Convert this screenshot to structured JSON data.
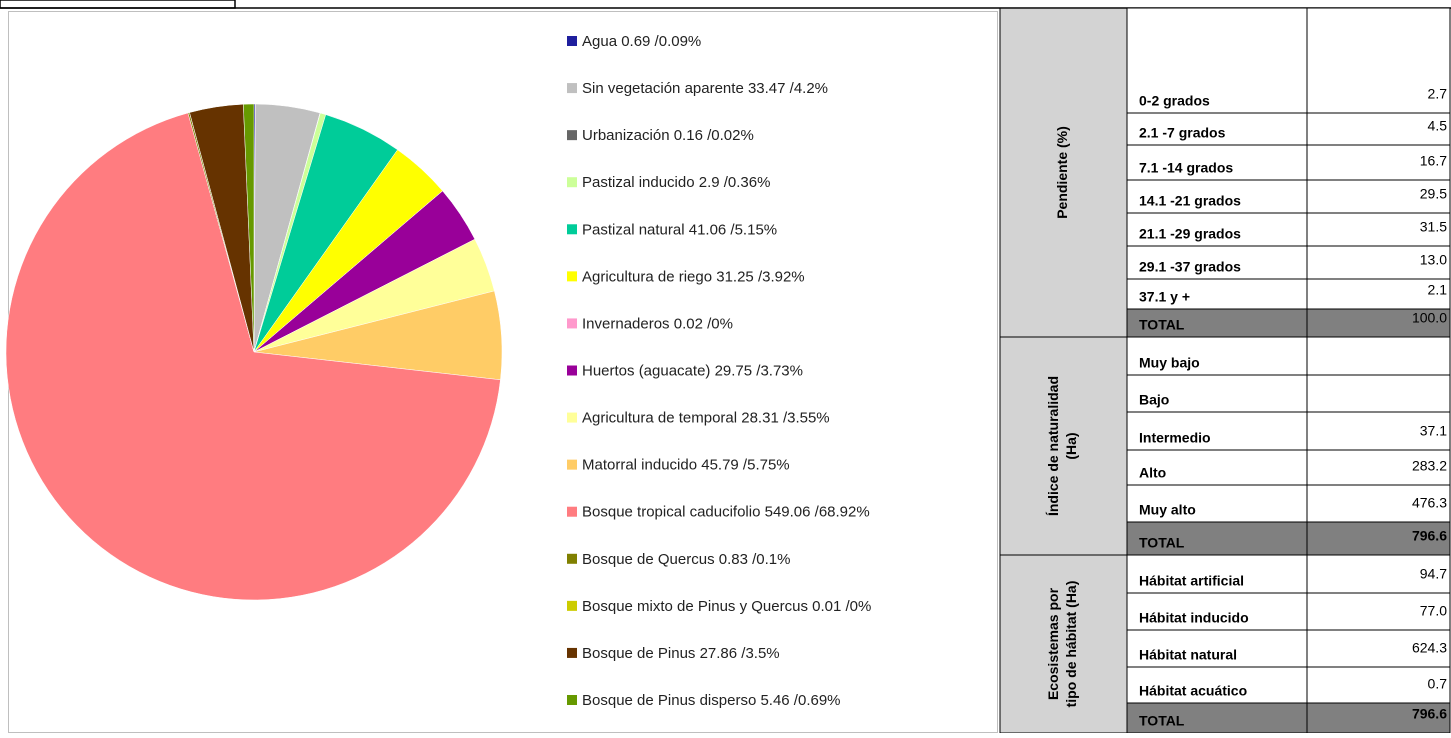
{
  "chart_data": {
    "type": "pie",
    "categories": [
      "Agua 0.69 /0.09%",
      "Sin vegetación aparente 33.47 /4.2%",
      "Urbanización 0.16 /0.02%",
      "Pastizal inducido 2.9 /0.36%",
      "Pastizal natural 41.06 /5.15%",
      "Agricultura de riego 31.25 /3.92%",
      "Invernaderos 0.02 /0%",
      "Huertos (aguacate) 29.75 /3.73%",
      "Agricultura de temporal 28.31 /3.55%",
      "Matorral inducido 45.79 /5.75%",
      "Bosque tropical caducifolio 549.06 /68.92%",
      "Bosque de Quercus 0.83 /0.1%",
      "Bosque mixto de Pinus y Quercus 0.01 /0%",
      "Bosque de Pinus 27.86 /3.5%",
      "Bosque de Pinus disperso 5.46 /0.69%"
    ],
    "values": [
      0.69,
      33.47,
      0.16,
      2.9,
      41.06,
      31.25,
      0.02,
      29.75,
      28.31,
      45.79,
      549.06,
      0.83,
      0.01,
      27.86,
      5.46
    ],
    "colors": [
      "#1f1f9e",
      "#c0c0c0",
      "#666666",
      "#ccff99",
      "#00cc99",
      "#ffff00",
      "#ff99cc",
      "#990099",
      "#ffff99",
      "#ffcc66",
      "#ff7c80",
      "#808000",
      "#cccc00",
      "#663300",
      "#669900"
    ],
    "legend": "right"
  },
  "table": {
    "sections": [
      {
        "title": [
          "Pendiente (%)"
        ],
        "rows": [
          [
            "0-2 grados",
            "2.7"
          ],
          [
            "2.1 -7 grados",
            "4.5"
          ],
          [
            "7.1 -14 grados",
            "16.7"
          ],
          [
            "14.1 -21 grados",
            "29.5"
          ],
          [
            "21.1 -29 grados",
            "31.5"
          ],
          [
            "29.1 -37 grados",
            "13.0"
          ],
          [
            "37.1  y +",
            "2.1"
          ]
        ],
        "total": [
          "TOTAL",
          "100.0"
        ]
      },
      {
        "title": [
          "Índice de naturalidad",
          "(Ha)"
        ],
        "rows": [
          [
            "Muy bajo"
          ],
          [
            "Bajo"
          ],
          [
            "Intermedio",
            "37.1"
          ],
          [
            "Alto",
            "283.2"
          ],
          [
            "Muy alto",
            "476.3"
          ]
        ],
        "total": [
          "TOTAL",
          "796.6"
        ]
      },
      {
        "title": [
          "Ecosistemas por",
          "tipo de hábitat (Ha)"
        ],
        "rows": [
          [
            "Hábitat artificial",
            "94.7"
          ],
          [
            "Hábitat inducido",
            "77.0"
          ],
          [
            "Hábitat natural",
            "624.3"
          ],
          [
            "Hábitat acuático",
            "0.7"
          ]
        ],
        "total": [
          "TOTAL",
          "796.6"
        ]
      }
    ]
  }
}
